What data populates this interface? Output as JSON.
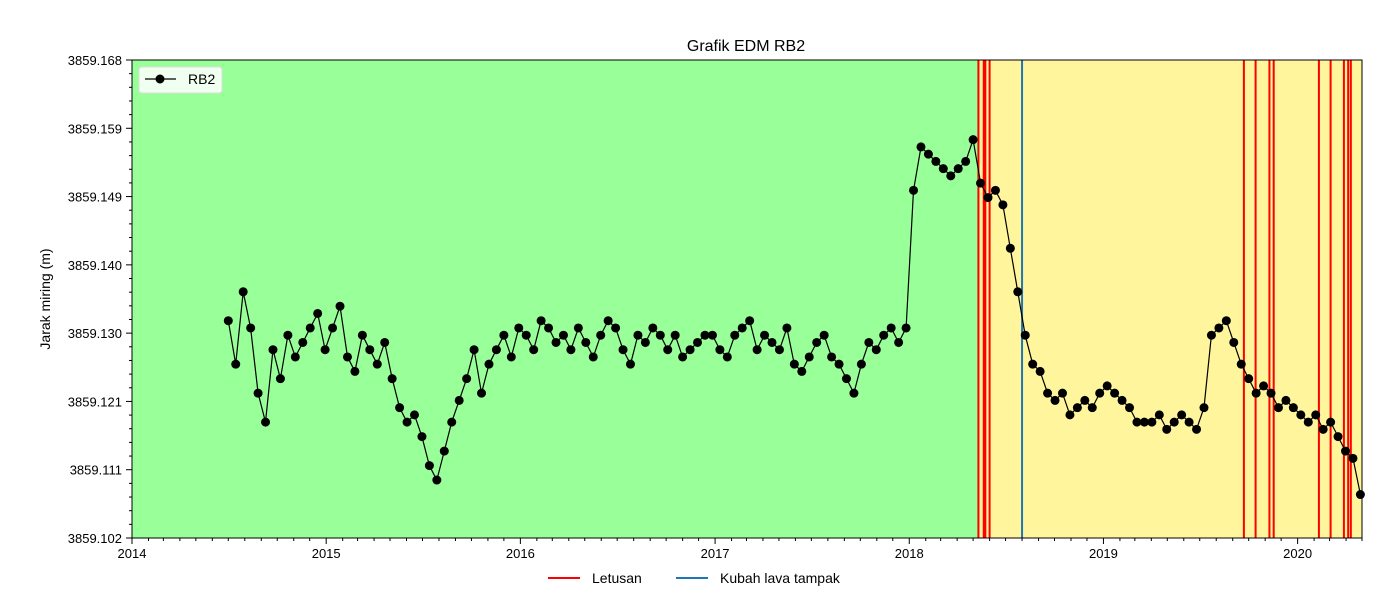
{
  "chart_data": {
    "type": "line",
    "title": "Grafik EDM RB2",
    "xlabel": "",
    "ylabel": "Jarak miring (m)",
    "xlim": [
      "2014-01-01",
      "2020-05-01"
    ],
    "ylim": [
      3859.102,
      3859.168
    ],
    "x_tick_labels": [
      "2014",
      "2015",
      "2016",
      "2017",
      "2018",
      "2019",
      "2020"
    ],
    "y_tick_labels": [
      "3859.102",
      "3859.111",
      "3859.121",
      "3859.130",
      "3859.140",
      "3859.149",
      "3859.159",
      "3859.168"
    ],
    "background_regions": [
      {
        "from": "2014-01-01",
        "to": "2018-05-11",
        "color": "#99ff99"
      },
      {
        "from": "2018-05-11",
        "to": "2020-05-01",
        "color": "#fff59d"
      }
    ],
    "series": [
      {
        "name": "RB2",
        "color": "#000000",
        "marker": "circle",
        "x": [
          "2014-07-01",
          "2014-07-15",
          "2014-07-29",
          "2014-08-12",
          "2014-08-26",
          "2014-09-09",
          "2014-09-23",
          "2014-10-07",
          "2014-10-21",
          "2014-11-04",
          "2014-11-18",
          "2014-12-02",
          "2014-12-16",
          "2014-12-30",
          "2015-01-13",
          "2015-01-27",
          "2015-02-10",
          "2015-02-24",
          "2015-03-10",
          "2015-03-24",
          "2015-04-07",
          "2015-04-21",
          "2015-05-05",
          "2015-05-19",
          "2015-06-02",
          "2015-06-16",
          "2015-06-30",
          "2015-07-14",
          "2015-07-28",
          "2015-08-11",
          "2015-08-25",
          "2015-09-08",
          "2015-09-22",
          "2015-10-06",
          "2015-10-20",
          "2015-11-03",
          "2015-11-17",
          "2015-12-01",
          "2015-12-15",
          "2015-12-29",
          "2016-01-12",
          "2016-01-26",
          "2016-02-09",
          "2016-02-23",
          "2016-03-08",
          "2016-03-22",
          "2016-04-05",
          "2016-04-19",
          "2016-05-03",
          "2016-05-17",
          "2016-05-31",
          "2016-06-14",
          "2016-06-28",
          "2016-07-12",
          "2016-07-26",
          "2016-08-09",
          "2016-08-23",
          "2016-09-06",
          "2016-09-20",
          "2016-10-04",
          "2016-10-18",
          "2016-11-01",
          "2016-11-15",
          "2016-11-29",
          "2016-12-13",
          "2016-12-27",
          "2017-01-10",
          "2017-01-24",
          "2017-02-07",
          "2017-02-21",
          "2017-03-07",
          "2017-03-21",
          "2017-04-04",
          "2017-04-18",
          "2017-05-02",
          "2017-05-16",
          "2017-05-30",
          "2017-06-13",
          "2017-06-27",
          "2017-07-11",
          "2017-07-25",
          "2017-08-08",
          "2017-08-22",
          "2017-09-05",
          "2017-09-19",
          "2017-10-03",
          "2017-10-17",
          "2017-10-31",
          "2017-11-14",
          "2017-11-28",
          "2017-12-12",
          "2017-12-26",
          "2018-01-09",
          "2018-01-23",
          "2018-02-06",
          "2018-02-20",
          "2018-03-06",
          "2018-03-20",
          "2018-04-03",
          "2018-04-17",
          "2018-05-01",
          "2018-05-15",
          "2018-05-29",
          "2018-06-12",
          "2018-06-26",
          "2018-07-10",
          "2018-07-24",
          "2018-08-07",
          "2018-08-21",
          "2018-09-04",
          "2018-09-18",
          "2018-10-02",
          "2018-10-16",
          "2018-10-30",
          "2018-11-13",
          "2018-11-27",
          "2018-12-11",
          "2018-12-25",
          "2019-01-08",
          "2019-01-22",
          "2019-02-05",
          "2019-02-19",
          "2019-03-05",
          "2019-03-19",
          "2019-04-02",
          "2019-04-16",
          "2019-04-30",
          "2019-05-14",
          "2019-05-28",
          "2019-06-11",
          "2019-06-25",
          "2019-07-09",
          "2019-07-23",
          "2019-08-06",
          "2019-08-20",
          "2019-09-03",
          "2019-09-17",
          "2019-10-01",
          "2019-10-15",
          "2019-10-29",
          "2019-11-12",
          "2019-11-26",
          "2019-12-10",
          "2019-12-24",
          "2020-01-07",
          "2020-01-21",
          "2020-02-04",
          "2020-02-18",
          "2020-03-03",
          "2020-03-17",
          "2020-03-31",
          "2020-04-14",
          "2020-04-28"
        ],
        "y": [
          3859.132,
          3859.126,
          3859.136,
          3859.131,
          3859.122,
          3859.118,
          3859.128,
          3859.124,
          3859.13,
          3859.127,
          3859.129,
          3859.131,
          3859.133,
          3859.128,
          3859.131,
          3859.134,
          3859.127,
          3859.125,
          3859.13,
          3859.128,
          3859.126,
          3859.129,
          3859.124,
          3859.12,
          3859.118,
          3859.119,
          3859.116,
          3859.112,
          3859.11,
          3859.114,
          3859.118,
          3859.121,
          3859.124,
          3859.128,
          3859.122,
          3859.126,
          3859.128,
          3859.13,
          3859.127,
          3859.131,
          3859.13,
          3859.128,
          3859.132,
          3859.131,
          3859.129,
          3859.13,
          3859.128,
          3859.131,
          3859.129,
          3859.127,
          3859.13,
          3859.132,
          3859.131,
          3859.128,
          3859.126,
          3859.13,
          3859.129,
          3859.131,
          3859.13,
          3859.128,
          3859.13,
          3859.127,
          3859.128,
          3859.129,
          3859.13,
          3859.13,
          3859.128,
          3859.127,
          3859.13,
          3859.131,
          3859.132,
          3859.128,
          3859.13,
          3859.129,
          3859.128,
          3859.131,
          3859.126,
          3859.125,
          3859.127,
          3859.129,
          3859.13,
          3859.127,
          3859.126,
          3859.124,
          3859.122,
          3859.126,
          3859.129,
          3859.128,
          3859.13,
          3859.131,
          3859.129,
          3859.131,
          3859.15,
          3859.156,
          3859.155,
          3859.154,
          3859.153,
          3859.152,
          3859.153,
          3859.154,
          3859.157,
          3859.151,
          3859.149,
          3859.15,
          3859.148,
          3859.142,
          3859.136,
          3859.13,
          3859.126,
          3859.125,
          3859.122,
          3859.121,
          3859.122,
          3859.119,
          3859.12,
          3859.121,
          3859.12,
          3859.122,
          3859.123,
          3859.122,
          3859.121,
          3859.12,
          3859.118,
          3859.118,
          3859.118,
          3859.119,
          3859.117,
          3859.118,
          3859.119,
          3859.118,
          3859.117,
          3859.12,
          3859.13,
          3859.131,
          3859.132,
          3859.129,
          3859.126,
          3859.124,
          3859.122,
          3859.123,
          3859.122,
          3859.12,
          3859.121,
          3859.12,
          3859.119,
          3859.118,
          3859.119,
          3859.117,
          3859.118,
          3859.116,
          3859.114,
          3859.113,
          3859.108
        ]
      }
    ],
    "legend": {
      "entries": [
        "RB2"
      ],
      "placement": "upper-left"
    },
    "vertical_lines": {
      "letusan": {
        "label": "Letusan",
        "color": "#ff0000",
        "dates": [
          "2018-05-11",
          "2018-05-21",
          "2018-05-24",
          "2018-06-01",
          "2019-09-22",
          "2019-10-14",
          "2019-11-09",
          "2019-11-17",
          "2020-02-10",
          "2020-03-03",
          "2020-03-28",
          "2020-04-05",
          "2020-04-10"
        ]
      },
      "kubah": {
        "label": "Kubah lava tampak",
        "color": "#1f77b4",
        "dates": [
          "2018-08-01"
        ]
      }
    },
    "bottom_legend": {
      "entries": [
        "Letusan",
        "Kubah lava tampak"
      ],
      "placement": "bottom-center"
    }
  }
}
